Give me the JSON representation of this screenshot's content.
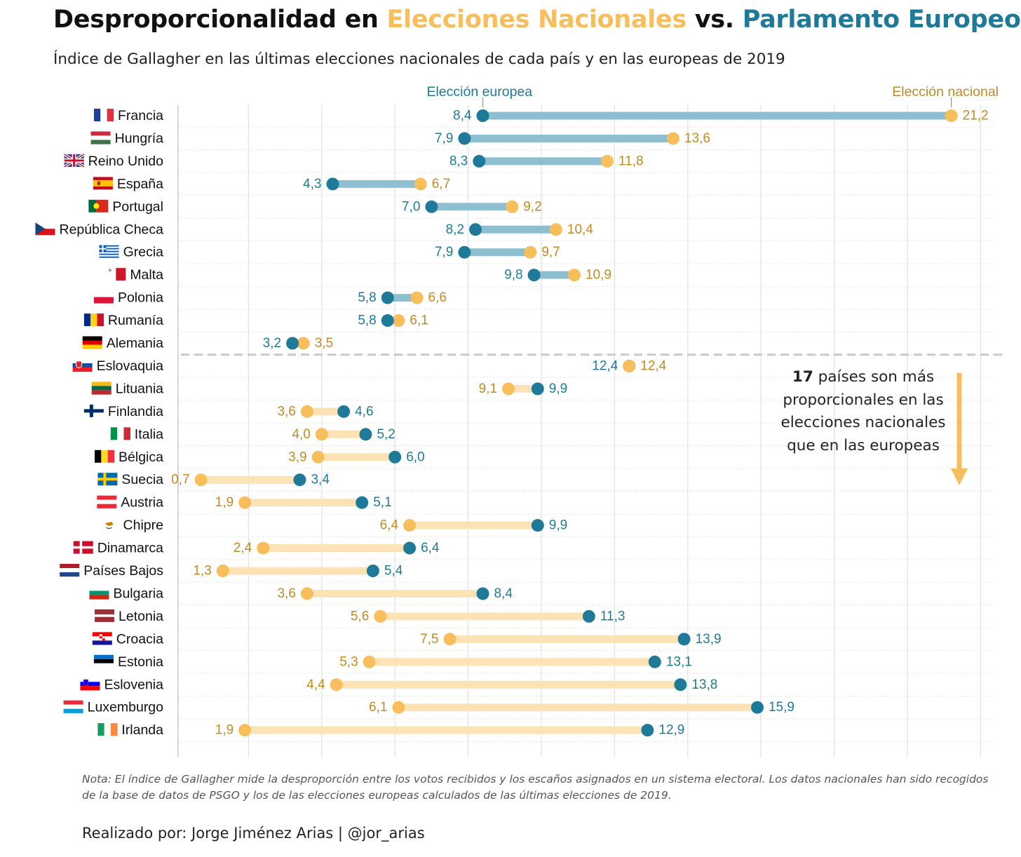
{
  "title": {
    "part1": "Desproporcionalidad en ",
    "part2": "Elecciones Nacionales",
    "part3": " vs. ",
    "part4": "Parlamento Europeo"
  },
  "subtitle": "Índice de Gallagher en las últimas elecciones nacionales de cada país y en las europeas de 2019",
  "annotation": {
    "number": "17",
    "text": " países son más proporcionales en las elecciones nacionales que en las europeas"
  },
  "note": "Nota: El índice de Gallagher mide la desproporción entre los votos recibidos y los escaños asignados en un sistema electoral. Los datos nacionales han sido recogidos de la base de datos de PSGO y los de las elecciones europeas calculados de las últimas elecciones de 2019.",
  "credit": "Realizado por: Jorge Jiménez Arias | @jor_arias",
  "colors": {
    "national": "#F7BE5B",
    "european": "#1F7A99",
    "national_text": "#C28A23",
    "european_text": "#1F7A99",
    "bar_upper": "#8DBFD0",
    "bar_lower": "#FCE2B4"
  },
  "chart_data": {
    "type": "dumbbell",
    "series_labels": {
      "european": "Elección europea",
      "national": "Elección nacional"
    },
    "xlim": [
      0,
      22
    ],
    "grid": true,
    "divider_after_index": 10,
    "countries": [
      {
        "name": "Francia",
        "flag": "fr",
        "european": 8.4,
        "national": 21.2,
        "european_label": "8,4",
        "national_label": "21,2"
      },
      {
        "name": "Hungría",
        "flag": "hu",
        "european": 7.9,
        "national": 13.6,
        "european_label": "7,9",
        "national_label": "13,6"
      },
      {
        "name": "Reino Unido",
        "flag": "uk",
        "european": 8.3,
        "national": 11.8,
        "european_label": "8,3",
        "national_label": "11,8"
      },
      {
        "name": "España",
        "flag": "es",
        "european": 4.3,
        "national": 6.7,
        "european_label": "4,3",
        "national_label": "6,7"
      },
      {
        "name": "Portugal",
        "flag": "pt",
        "european": 7.0,
        "national": 9.2,
        "european_label": "7,0",
        "national_label": "9,2"
      },
      {
        "name": "República Checa",
        "flag": "cz",
        "european": 8.2,
        "national": 10.4,
        "european_label": "8,2",
        "national_label": "10,4"
      },
      {
        "name": "Grecia",
        "flag": "gr",
        "european": 7.9,
        "national": 9.7,
        "european_label": "7,9",
        "national_label": "9,7"
      },
      {
        "name": "Malta",
        "flag": "mt",
        "european": 9.8,
        "national": 10.9,
        "european_label": "9,8",
        "national_label": "10,9"
      },
      {
        "name": "Polonia",
        "flag": "pl",
        "european": 5.8,
        "national": 6.6,
        "european_label": "5,8",
        "national_label": "6,6"
      },
      {
        "name": "Rumanía",
        "flag": "ro",
        "european": 5.8,
        "national": 6.1,
        "european_label": "5,8",
        "national_label": "6,1"
      },
      {
        "name": "Alemania",
        "flag": "de",
        "european": 3.2,
        "national": 3.5,
        "european_label": "3,2",
        "national_label": "3,5"
      },
      {
        "name": "Eslovaquia",
        "flag": "sk",
        "european": 12.4,
        "national": 12.4,
        "european_label": "12,4",
        "national_label": "12,4"
      },
      {
        "name": "Lituania",
        "flag": "lt",
        "european": 9.9,
        "national": 9.1,
        "european_label": "9,9",
        "national_label": "9,1"
      },
      {
        "name": "Finlandia",
        "flag": "fi",
        "european": 4.6,
        "national": 3.6,
        "european_label": "4,6",
        "national_label": "3,6"
      },
      {
        "name": "Italia",
        "flag": "it",
        "european": 5.2,
        "national": 4.0,
        "european_label": "5,2",
        "national_label": "4,0"
      },
      {
        "name": "Bélgica",
        "flag": "be",
        "european": 6.0,
        "national": 3.9,
        "european_label": "6,0",
        "national_label": "3,9"
      },
      {
        "name": "Suecia",
        "flag": "se",
        "european": 3.4,
        "national": 0.7,
        "european_label": "3,4",
        "national_label": "0,7"
      },
      {
        "name": "Austria",
        "flag": "at",
        "european": 5.1,
        "national": 1.9,
        "european_label": "5,1",
        "national_label": "1,9"
      },
      {
        "name": "Chipre",
        "flag": "cy",
        "european": 9.9,
        "national": 6.4,
        "european_label": "9,9",
        "national_label": "6,4"
      },
      {
        "name": "Dinamarca",
        "flag": "dk",
        "european": 6.4,
        "national": 2.4,
        "european_label": "6,4",
        "national_label": "2,4"
      },
      {
        "name": "Países Bajos",
        "flag": "nl",
        "european": 5.4,
        "national": 1.3,
        "european_label": "5,4",
        "national_label": "1,3"
      },
      {
        "name": "Bulgaria",
        "flag": "bg",
        "european": 8.4,
        "national": 3.6,
        "european_label": "8,4",
        "national_label": "3,6"
      },
      {
        "name": "Letonia",
        "flag": "lv",
        "european": 11.3,
        "national": 5.6,
        "european_label": "11,3",
        "national_label": "5,6"
      },
      {
        "name": "Croacia",
        "flag": "hr",
        "european": 13.9,
        "national": 7.5,
        "european_label": "13,9",
        "national_label": "7,5"
      },
      {
        "name": "Estonia",
        "flag": "ee",
        "european": 13.1,
        "national": 5.3,
        "european_label": "13,1",
        "national_label": "5,3"
      },
      {
        "name": "Eslovenia",
        "flag": "si",
        "european": 13.8,
        "national": 4.4,
        "european_label": "13,8",
        "national_label": "4,4"
      },
      {
        "name": "Luxemburgo",
        "flag": "lu",
        "european": 15.9,
        "national": 6.1,
        "european_label": "15,9",
        "national_label": "6,1"
      },
      {
        "name": "Irlanda",
        "flag": "ie",
        "european": 12.9,
        "national": 1.9,
        "european_label": "12,9",
        "national_label": "1,9"
      }
    ]
  }
}
